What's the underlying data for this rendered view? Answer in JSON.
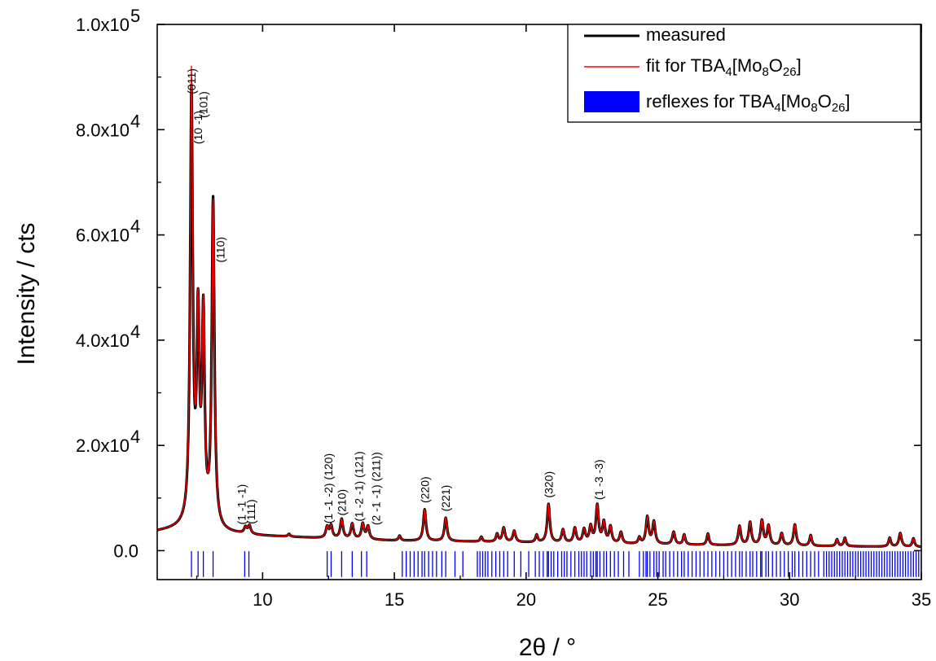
{
  "chart_data": {
    "type": "line",
    "xlabel": "2θ / °",
    "ylabel": "Intensity / cts",
    "xlim": [
      6.0,
      35.0
    ],
    "ylim": [
      -5500,
      100000
    ],
    "x_ticks": [
      10,
      15,
      20,
      25,
      30,
      35
    ],
    "x_tick_labels": [
      "10",
      "15",
      "20",
      "25",
      "30",
      "35"
    ],
    "y_ticks": [
      0,
      20000,
      40000,
      60000,
      80000,
      100000
    ],
    "y_tick_labels": [
      {
        "mantissa": "0.0",
        "exp": ""
      },
      {
        "mantissa": "2.0x10",
        "exp": "4"
      },
      {
        "mantissa": "4.0x10",
        "exp": "4"
      },
      {
        "mantissa": "6.0x10",
        "exp": "4"
      },
      {
        "mantissa": "8.0x10",
        "exp": "4"
      },
      {
        "mantissa": "1.0x10",
        "exp": "5"
      }
    ],
    "legend_position": "top-right",
    "legend": [
      {
        "label": "measured",
        "color": "#000000",
        "kind": "line"
      },
      {
        "label_parts": [
          [
            "fit for TBA",
            "n"
          ],
          [
            "4",
            "sub"
          ],
          [
            "[Mo",
            "n"
          ],
          [
            "8",
            "sub"
          ],
          [
            "O",
            "n"
          ],
          [
            "26",
            "sub"
          ],
          [
            "]",
            "n"
          ]
        ],
        "color": "#ff0000",
        "kind": "line"
      },
      {
        "label_parts": [
          [
            "reflexes for TBA",
            "n"
          ],
          [
            "4",
            "sub"
          ],
          [
            "[Mo",
            "n"
          ],
          [
            "8",
            "sub"
          ],
          [
            "O",
            "n"
          ],
          [
            "26",
            "sub"
          ],
          [
            "]",
            "n"
          ]
        ],
        "color": "#0000ff",
        "kind": "box"
      }
    ],
    "series": [
      {
        "name": "measured",
        "color": "#000000",
        "baseline": [
          [
            6.0,
            3600
          ],
          [
            7.0,
            4200
          ],
          [
            8.5,
            3300
          ],
          [
            10,
            2800
          ],
          [
            12,
            2400
          ],
          [
            15,
            1900
          ],
          [
            18,
            1700
          ],
          [
            22,
            1400
          ],
          [
            26,
            1100
          ],
          [
            30,
            900
          ],
          [
            35,
            700
          ]
        ],
        "peaks": [
          [
            7.3,
            85500,
            0.06
          ],
          [
            7.55,
            41500,
            0.06
          ],
          [
            7.75,
            42500,
            0.06
          ],
          [
            8.12,
            65500,
            0.06
          ],
          [
            9.35,
            4200,
            0.06
          ],
          [
            9.5,
            4500,
            0.06
          ],
          [
            11.0,
            3100,
            0.05
          ],
          [
            12.45,
            4400,
            0.06
          ],
          [
            12.6,
            4600,
            0.06
          ],
          [
            13.0,
            5900,
            0.06
          ],
          [
            13.4,
            5000,
            0.06
          ],
          [
            13.8,
            5000,
            0.06
          ],
          [
            14.0,
            4500,
            0.06
          ],
          [
            15.2,
            2800,
            0.05
          ],
          [
            16.15,
            7800,
            0.06
          ],
          [
            16.95,
            6200,
            0.06
          ],
          [
            18.3,
            2600,
            0.05
          ],
          [
            18.9,
            3100,
            0.05
          ],
          [
            19.15,
            4300,
            0.06
          ],
          [
            19.55,
            3700,
            0.06
          ],
          [
            20.4,
            2900,
            0.05
          ],
          [
            20.85,
            8800,
            0.06
          ],
          [
            21.4,
            3900,
            0.06
          ],
          [
            21.85,
            4200,
            0.06
          ],
          [
            22.2,
            3900,
            0.06
          ],
          [
            22.45,
            4400,
            0.06
          ],
          [
            22.7,
            8400,
            0.06
          ],
          [
            22.95,
            5200,
            0.06
          ],
          [
            23.2,
            4400,
            0.06
          ],
          [
            23.6,
            3400,
            0.06
          ],
          [
            24.3,
            2400,
            0.05
          ],
          [
            24.6,
            6300,
            0.06
          ],
          [
            24.85,
            5400,
            0.06
          ],
          [
            25.6,
            3500,
            0.06
          ],
          [
            26.0,
            3000,
            0.05
          ],
          [
            26.9,
            3200,
            0.05
          ],
          [
            28.1,
            4600,
            0.06
          ],
          [
            28.5,
            5300,
            0.06
          ],
          [
            28.95,
            5600,
            0.06
          ],
          [
            29.2,
            4600,
            0.06
          ],
          [
            29.7,
            3200,
            0.06
          ],
          [
            30.2,
            4900,
            0.06
          ],
          [
            30.8,
            2900,
            0.05
          ],
          [
            31.8,
            2100,
            0.05
          ],
          [
            32.1,
            2400,
            0.05
          ],
          [
            33.8,
            2400,
            0.05
          ],
          [
            34.2,
            3300,
            0.06
          ],
          [
            34.7,
            2300,
            0.05
          ]
        ]
      },
      {
        "name": "fit",
        "color": "#ff0000",
        "peak_overrides": [
          [
            7.3,
            89000
          ],
          [
            8.12,
            65000
          ]
        ]
      }
    ],
    "reflexes": {
      "color": "#0000ff",
      "y_top": -100,
      "y_bottom": -5000,
      "positions": [
        7.3,
        7.55,
        7.75,
        8.12,
        9.32,
        9.48,
        12.45,
        12.6,
        13.0,
        13.4,
        13.75,
        13.95,
        15.3,
        15.45,
        15.6,
        15.75,
        15.9,
        16.05,
        16.15,
        16.3,
        16.45,
        16.6,
        16.8,
        16.95,
        17.3,
        17.6,
        18.15,
        18.25,
        18.35,
        18.45,
        18.55,
        18.7,
        18.85,
        19.0,
        19.15,
        19.3,
        19.55,
        19.8,
        20.1,
        20.35,
        20.5,
        20.65,
        20.8,
        20.85,
        20.95,
        21.05,
        21.2,
        21.35,
        21.45,
        21.55,
        21.7,
        21.85,
        22.0,
        22.1,
        22.2,
        22.3,
        22.45,
        22.55,
        22.65,
        22.7,
        22.8,
        22.95,
        23.05,
        23.2,
        23.35,
        23.5,
        23.7,
        23.9,
        24.3,
        24.45,
        24.55,
        24.6,
        24.7,
        24.85,
        24.95,
        25.05,
        25.2,
        25.3,
        25.45,
        25.6,
        25.75,
        25.9,
        26.0,
        26.15,
        26.3,
        26.45,
        26.6,
        26.75,
        26.9,
        27.05,
        27.2,
        27.35,
        27.5,
        27.65,
        27.8,
        27.95,
        28.1,
        28.2,
        28.35,
        28.5,
        28.6,
        28.75,
        28.9,
        28.95,
        29.1,
        29.2,
        29.35,
        29.5,
        29.65,
        29.8,
        29.95,
        30.1,
        30.2,
        30.35,
        30.5,
        30.65,
        30.8,
        30.95,
        31.1,
        31.3,
        31.4,
        31.5,
        31.6,
        31.7,
        31.8,
        31.9,
        32.0,
        32.1,
        32.2,
        32.3,
        32.4,
        32.5,
        32.6,
        32.7,
        32.8,
        32.9,
        33.0,
        33.1,
        33.2,
        33.3,
        33.4,
        33.5,
        33.6,
        33.7,
        33.8,
        33.9,
        34.0,
        34.1,
        34.2,
        34.3,
        34.4,
        34.5,
        34.6,
        34.7,
        34.8,
        34.9
      ]
    },
    "annotations": [
      {
        "text": "(011)",
        "x": 7.3,
        "y": 85500,
        "rotate": -90
      },
      {
        "text": "(10 -1)",
        "x": 7.55,
        "y": 76000,
        "rotate": -90
      },
      {
        "text": "(101)",
        "x": 7.75,
        "y": 81000,
        "rotate": -90
      },
      {
        "text": "(110)",
        "x": 8.4,
        "y": 53500,
        "rotate": -90
      },
      {
        "text": "(1 -1 -1)",
        "x": 9.2,
        "y": 3700,
        "rotate": -90
      },
      {
        "text": "(111)",
        "x": 9.55,
        "y": 3800,
        "rotate": -90
      },
      {
        "text": "(1 -1 -2) (120)",
        "x": 12.5,
        "y": 3900,
        "rotate": -90
      },
      {
        "text": "(210)",
        "x": 13.0,
        "y": 5400,
        "rotate": -90
      },
      {
        "text": "(1 -2 -1) (121)",
        "x": 13.65,
        "y": 4300,
        "rotate": -90
      },
      {
        "text": "(2 -1 -1) (211))",
        "x": 14.3,
        "y": 3600,
        "rotate": -90
      },
      {
        "text": "(220)",
        "x": 16.15,
        "y": 7800,
        "rotate": -90
      },
      {
        "text": "(221)",
        "x": 16.95,
        "y": 6200,
        "rotate": -90
      },
      {
        "text": "(320)",
        "x": 20.85,
        "y": 8800,
        "rotate": -90
      },
      {
        "text": "(1 -3 -3)",
        "x": 22.75,
        "y": 8400,
        "rotate": -90
      }
    ]
  }
}
